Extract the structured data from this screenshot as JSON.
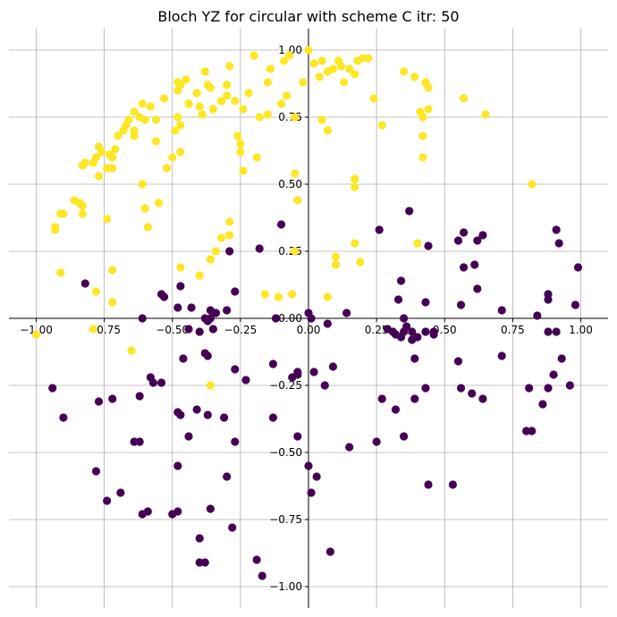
{
  "chart_data": {
    "type": "scatter",
    "title": "Bloch YZ for circular with scheme C itr: 50",
    "xlabel": "",
    "ylabel": "",
    "xlim": [
      -1.1,
      1.1
    ],
    "ylim": [
      -1.08,
      1.08
    ],
    "grid": true,
    "xticks": [
      -1.0,
      -0.75,
      -0.5,
      -0.25,
      0.0,
      0.25,
      0.5,
      0.75,
      1.0
    ],
    "yticks": [
      -1.0,
      -0.75,
      -0.5,
      -0.25,
      0.0,
      0.25,
      0.5,
      0.75,
      1.0
    ],
    "xtick_labels": [
      "−1.00",
      "−0.75",
      "−0.50",
      "−0.25",
      "0.00",
      "0.25",
      "0.50",
      "0.75",
      "1.00"
    ],
    "ytick_labels": [
      "−1.00",
      "−0.75",
      "−0.50",
      "−0.25",
      "0.00",
      "0.25",
      "0.50",
      "0.75",
      "1.00"
    ],
    "colors": {
      "yellow": "#fde725",
      "purple": "#440154"
    },
    "series": [
      {
        "color": "yellow",
        "points": [
          [
            0.0,
            1.0
          ],
          [
            -0.07,
            0.98
          ],
          [
            -0.09,
            0.96
          ],
          [
            -0.2,
            0.98
          ],
          [
            -0.14,
            0.93
          ],
          [
            -0.15,
            0.88
          ],
          [
            -0.1,
            0.8
          ],
          [
            -0.08,
            0.83
          ],
          [
            -0.15,
            0.76
          ],
          [
            -0.18,
            0.75
          ],
          [
            -0.05,
            0.75
          ],
          [
            -0.02,
            0.88
          ],
          [
            0.02,
            0.95
          ],
          [
            0.04,
            0.9
          ],
          [
            0.05,
            0.96
          ],
          [
            0.07,
            0.92
          ],
          [
            0.09,
            0.93
          ],
          [
            0.12,
            0.94
          ],
          [
            0.15,
            0.93
          ],
          [
            0.18,
            0.96
          ],
          [
            0.2,
            0.97
          ],
          [
            0.22,
            0.97
          ],
          [
            0.13,
            0.88
          ],
          [
            0.17,
            0.91
          ],
          [
            0.05,
            0.74
          ],
          [
            0.07,
            0.7
          ],
          [
            0.11,
            0.96
          ],
          [
            0.27,
            0.72
          ],
          [
            0.24,
            0.82
          ],
          [
            0.35,
            0.92
          ],
          [
            0.39,
            0.9
          ],
          [
            0.43,
            0.88
          ],
          [
            0.44,
            0.86
          ],
          [
            0.42,
            0.75
          ],
          [
            0.44,
            0.78
          ],
          [
            0.42,
            0.68
          ],
          [
            0.41,
            0.77
          ],
          [
            0.57,
            0.82
          ],
          [
            0.65,
            0.76
          ],
          [
            0.82,
            0.5
          ],
          [
            0.42,
            0.6
          ],
          [
            0.17,
            0.52
          ],
          [
            0.17,
            0.49
          ],
          [
            0.17,
            0.28
          ],
          [
            0.19,
            0.21
          ],
          [
            0.1,
            0.23
          ],
          [
            0.07,
            0.08
          ],
          [
            -0.05,
            0.54
          ],
          [
            -0.04,
            0.44
          ],
          [
            -0.05,
            0.25
          ],
          [
            -0.11,
            0.08
          ],
          [
            -0.06,
            0.09
          ],
          [
            -0.19,
            0.6
          ],
          [
            -0.24,
            0.55
          ],
          [
            -0.25,
            0.62
          ],
          [
            -0.25,
            0.65
          ],
          [
            -0.26,
            0.68
          ],
          [
            -0.24,
            0.78
          ],
          [
            -0.27,
            0.81
          ],
          [
            -0.22,
            0.84
          ],
          [
            -0.3,
            0.83
          ],
          [
            -0.29,
            0.94
          ],
          [
            -0.3,
            0.87
          ],
          [
            -0.32,
            0.81
          ],
          [
            -0.36,
            0.86
          ],
          [
            -0.38,
            0.92
          ],
          [
            -0.35,
            0.78
          ],
          [
            -0.37,
            0.87
          ],
          [
            -0.4,
            0.79
          ],
          [
            -0.39,
            0.76
          ],
          [
            -0.41,
            0.84
          ],
          [
            -0.45,
            0.89
          ],
          [
            -0.47,
            0.87
          ],
          [
            -0.48,
            0.88
          ],
          [
            -0.48,
            0.85
          ],
          [
            -0.44,
            0.8
          ],
          [
            -0.48,
            0.75
          ],
          [
            -0.47,
            0.72
          ],
          [
            -0.49,
            0.7
          ],
          [
            -0.53,
            0.82
          ],
          [
            -0.56,
            0.74
          ],
          [
            -0.58,
            0.79
          ],
          [
            -0.61,
            0.8
          ],
          [
            -0.6,
            0.74
          ],
          [
            -0.62,
            0.75
          ],
          [
            -0.64,
            0.7
          ],
          [
            -0.64,
            0.77
          ],
          [
            -0.56,
            0.66
          ],
          [
            -0.64,
            0.68
          ],
          [
            -0.66,
            0.74
          ],
          [
            -0.67,
            0.72
          ],
          [
            -0.68,
            0.7
          ],
          [
            -0.7,
            0.68
          ],
          [
            -0.71,
            0.63
          ],
          [
            -0.72,
            0.6
          ],
          [
            -0.72,
            0.56
          ],
          [
            -0.73,
            0.61
          ],
          [
            -0.74,
            0.56
          ],
          [
            -0.76,
            0.62
          ],
          [
            -0.77,
            0.64
          ],
          [
            -0.78,
            0.6
          ],
          [
            -0.79,
            0.58
          ],
          [
            -0.82,
            0.58
          ],
          [
            -0.83,
            0.57
          ],
          [
            -0.77,
            0.53
          ],
          [
            -0.84,
            0.43
          ],
          [
            -0.83,
            0.42
          ],
          [
            -0.86,
            0.44
          ],
          [
            -0.83,
            0.39
          ],
          [
            -0.9,
            0.39
          ],
          [
            -0.91,
            0.39
          ],
          [
            -0.93,
            0.33
          ],
          [
            -0.93,
            0.34
          ],
          [
            -0.91,
            0.17
          ],
          [
            -0.78,
            0.1
          ],
          [
            -0.72,
            0.18
          ],
          [
            -0.72,
            0.06
          ],
          [
            -0.74,
            0.37
          ],
          [
            -0.6,
            0.41
          ],
          [
            -0.59,
            0.34
          ],
          [
            -0.55,
            0.43
          ],
          [
            -0.61,
            0.5
          ],
          [
            -0.5,
            0.6
          ],
          [
            -0.52,
            0.56
          ],
          [
            -0.47,
            0.62
          ],
          [
            -0.47,
            0.19
          ],
          [
            -0.4,
            0.16
          ],
          [
            -0.36,
            0.22
          ],
          [
            -0.32,
            0.3
          ],
          [
            -0.29,
            0.36
          ],
          [
            -0.29,
            0.31
          ],
          [
            -0.34,
            0.25
          ],
          [
            -0.16,
            0.09
          ],
          [
            -1.0,
            -0.06
          ],
          [
            -0.79,
            -0.04
          ],
          [
            -0.65,
            -0.12
          ],
          [
            -0.36,
            -0.25
          ],
          [
            0.1,
            0.2
          ],
          [
            0.4,
            0.28
          ]
        ]
      },
      {
        "color": "purple",
        "points": [
          [
            -0.82,
            0.13
          ],
          [
            -0.61,
            0.0
          ],
          [
            -0.53,
            0.08
          ],
          [
            -0.54,
            0.09
          ],
          [
            -0.47,
            0.12
          ],
          [
            -0.48,
            0.04
          ],
          [
            -0.43,
            0.04
          ],
          [
            -0.44,
            -0.04
          ],
          [
            -0.4,
            -0.05
          ],
          [
            -0.37,
            -0.01
          ],
          [
            -0.38,
            0.0
          ],
          [
            -0.36,
            0.0
          ],
          [
            -0.34,
            0.02
          ],
          [
            -0.35,
            -0.04
          ],
          [
            -0.36,
            0.03
          ],
          [
            -0.3,
            0.03
          ],
          [
            -0.27,
            0.1
          ],
          [
            -0.29,
            0.25
          ],
          [
            -0.18,
            0.26
          ],
          [
            -0.1,
            0.35
          ],
          [
            -0.12,
            0.0
          ],
          [
            0.0,
            0.02
          ],
          [
            0.01,
            0.0
          ],
          [
            0.07,
            -0.02
          ],
          [
            0.14,
            0.02
          ],
          [
            -0.46,
            -0.15
          ],
          [
            -0.38,
            -0.13
          ],
          [
            -0.37,
            -0.14
          ],
          [
            -0.58,
            -0.22
          ],
          [
            -0.57,
            -0.24
          ],
          [
            -0.54,
            -0.24
          ],
          [
            -0.62,
            -0.29
          ],
          [
            -0.27,
            -0.19
          ],
          [
            -0.23,
            -0.23
          ],
          [
            -0.13,
            -0.17
          ],
          [
            -0.04,
            -0.2
          ],
          [
            -0.04,
            -0.21
          ],
          [
            -0.06,
            -0.22
          ],
          [
            0.02,
            -0.2
          ],
          [
            0.06,
            -0.25
          ],
          [
            0.09,
            -0.18
          ],
          [
            -0.94,
            -0.26
          ],
          [
            -0.9,
            -0.37
          ],
          [
            -0.77,
            -0.31
          ],
          [
            -0.72,
            -0.3
          ],
          [
            -0.48,
            -0.35
          ],
          [
            -0.47,
            -0.36
          ],
          [
            -0.41,
            -0.34
          ],
          [
            -0.37,
            -0.36
          ],
          [
            -0.31,
            -0.37
          ],
          [
            -0.13,
            -0.37
          ],
          [
            -0.44,
            -0.44
          ],
          [
            -0.27,
            -0.46
          ],
          [
            -0.64,
            -0.46
          ],
          [
            -0.62,
            -0.46
          ],
          [
            -0.78,
            -0.57
          ],
          [
            -0.74,
            -0.68
          ],
          [
            -0.69,
            -0.65
          ],
          [
            -0.61,
            -0.73
          ],
          [
            -0.59,
            -0.72
          ],
          [
            -0.48,
            -0.55
          ],
          [
            -0.5,
            -0.73
          ],
          [
            -0.48,
            -0.72
          ],
          [
            -0.36,
            -0.71
          ],
          [
            -0.3,
            -0.59
          ],
          [
            -0.28,
            -0.78
          ],
          [
            -0.4,
            -0.82
          ],
          [
            -0.4,
            -0.91
          ],
          [
            -0.38,
            -0.91
          ],
          [
            -0.19,
            -0.9
          ],
          [
            -0.17,
            -0.96
          ],
          [
            -0.04,
            -0.44
          ],
          [
            0.0,
            -0.55
          ],
          [
            0.01,
            -0.65
          ],
          [
            0.03,
            -0.59
          ],
          [
            0.08,
            -0.87
          ],
          [
            0.15,
            -0.48
          ],
          [
            0.25,
            -0.46
          ],
          [
            0.27,
            -0.3
          ],
          [
            0.32,
            -0.34
          ],
          [
            0.35,
            -0.44
          ],
          [
            0.39,
            -0.3
          ],
          [
            0.43,
            -0.26
          ],
          [
            0.44,
            -0.62
          ],
          [
            0.53,
            -0.62
          ],
          [
            0.26,
            0.33
          ],
          [
            0.34,
            0.14
          ],
          [
            0.35,
            0.0
          ],
          [
            0.37,
            0.4
          ],
          [
            0.33,
            0.07
          ],
          [
            0.44,
            0.27
          ],
          [
            0.43,
            0.06
          ],
          [
            0.29,
            -0.04
          ],
          [
            0.31,
            -0.05
          ],
          [
            0.32,
            -0.06
          ],
          [
            0.34,
            -0.07
          ],
          [
            0.35,
            -0.05
          ],
          [
            0.36,
            -0.03
          ],
          [
            0.38,
            -0.05
          ],
          [
            0.38,
            -0.08
          ],
          [
            0.4,
            -0.07
          ],
          [
            0.46,
            -0.05
          ],
          [
            0.46,
            -0.06
          ],
          [
            0.43,
            -0.05
          ],
          [
            0.39,
            -0.15
          ],
          [
            0.55,
            -0.16
          ],
          [
            0.56,
            -0.26
          ],
          [
            0.6,
            -0.28
          ],
          [
            0.64,
            -0.3
          ],
          [
            0.56,
            0.05
          ],
          [
            0.55,
            0.29
          ],
          [
            0.57,
            0.19
          ],
          [
            0.57,
            0.32
          ],
          [
            0.61,
            0.2
          ],
          [
            0.62,
            0.29
          ],
          [
            0.64,
            0.31
          ],
          [
            0.62,
            0.11
          ],
          [
            0.71,
            0.03
          ],
          [
            0.71,
            -0.14
          ],
          [
            0.8,
            -0.42
          ],
          [
            0.82,
            -0.42
          ],
          [
            0.81,
            -0.26
          ],
          [
            0.84,
            0.01
          ],
          [
            0.86,
            -0.32
          ],
          [
            0.88,
            0.07
          ],
          [
            0.88,
            0.09
          ],
          [
            0.88,
            -0.05
          ],
          [
            0.91,
            -0.05
          ],
          [
            0.9,
            -0.21
          ],
          [
            0.88,
            -0.26
          ],
          [
            0.91,
            0.33
          ],
          [
            0.92,
            0.28
          ],
          [
            0.93,
            -0.15
          ],
          [
            0.96,
            -0.25
          ],
          [
            0.98,
            0.05
          ],
          [
            0.99,
            0.19
          ]
        ]
      }
    ]
  }
}
